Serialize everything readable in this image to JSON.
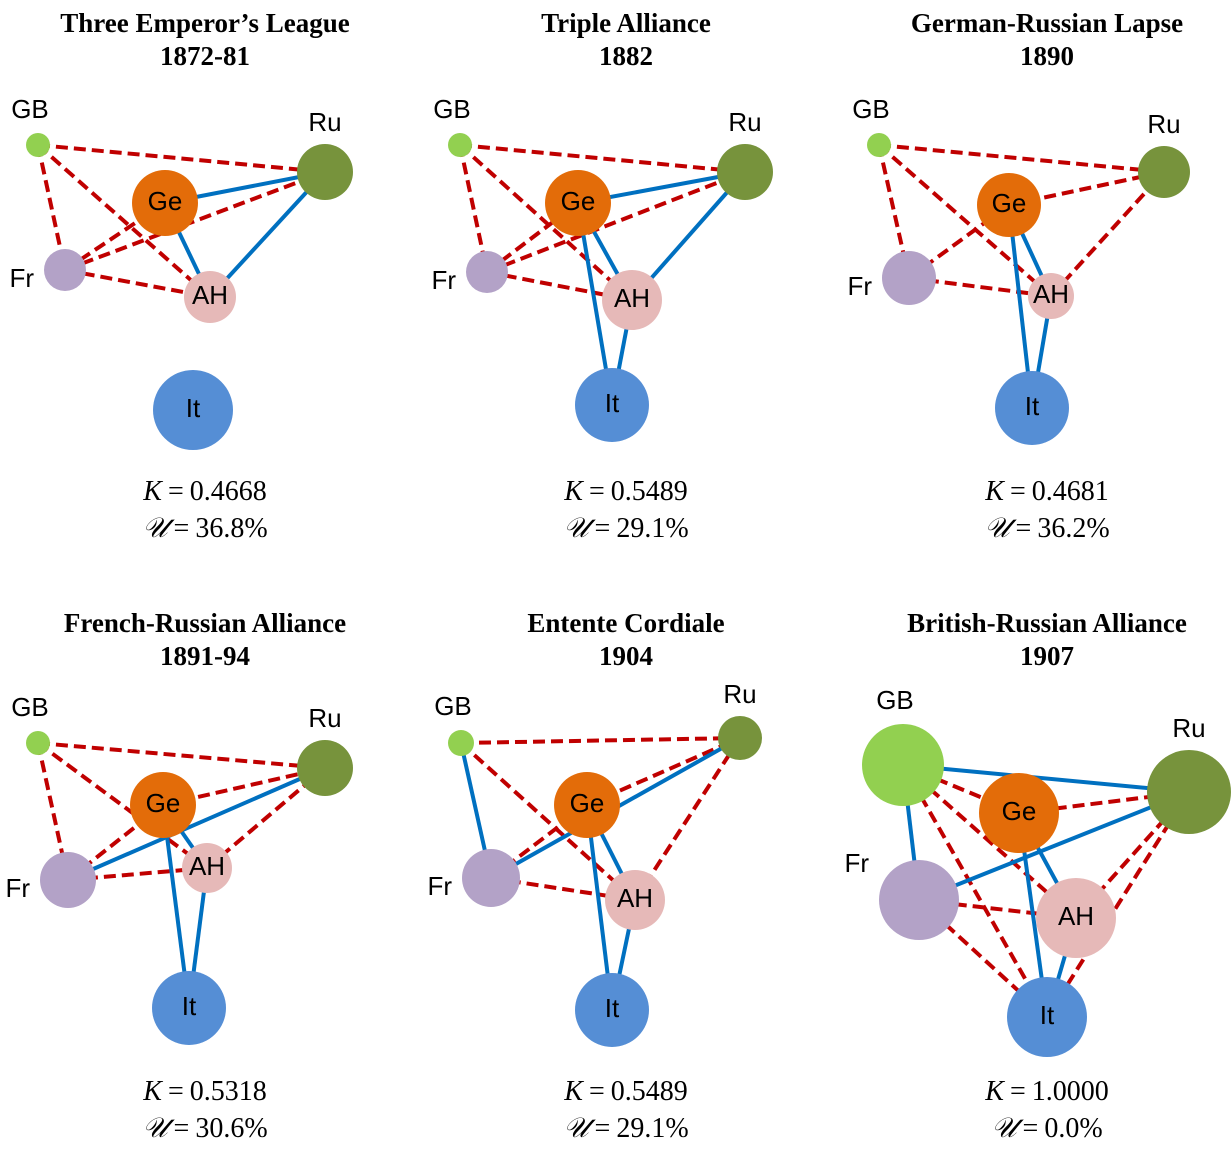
{
  "k_symbol": "K",
  "u_symbol": "𝒰",
  "equals": "=",
  "panels": [
    {
      "title": "Three Emperor’s League",
      "year": "1872-81",
      "nodes": [
        "GB",
        "Ru",
        "Ge",
        "Fr",
        "AH",
        "It"
      ],
      "k": "0.4668",
      "u": "36.8%"
    },
    {
      "title": "Triple Alliance",
      "year": "1882",
      "nodes": [
        "GB",
        "Ru",
        "Ge",
        "Fr",
        "AH",
        "It"
      ],
      "k": "0.5489",
      "u": "29.1%"
    },
    {
      "title": "German-Russian Lapse",
      "year": "1890",
      "nodes": [
        "GB",
        "Ru",
        "Ge",
        "Fr",
        "AH",
        "It"
      ],
      "k": "0.4681",
      "u": "36.2%"
    },
    {
      "title": "French-Russian Alliance",
      "year": "1891-94",
      "nodes": [
        "GB",
        "Ru",
        "Ge",
        "Fr",
        "AH",
        "It"
      ],
      "k": "0.5318",
      "u": "30.6%"
    },
    {
      "title": "Entente Cordiale",
      "year": "1904",
      "nodes": [
        "GB",
        "Ru",
        "Ge",
        "Fr",
        "AH",
        "It"
      ],
      "k": "0.5489",
      "u": "29.1%"
    },
    {
      "title": "British-Russian Alliance",
      "year": "1907",
      "nodes": [
        "GB",
        "Ru",
        "Ge",
        "Fr",
        "AH",
        "It"
      ],
      "k": "1.0000",
      "u": "0.0%"
    }
  ]
}
